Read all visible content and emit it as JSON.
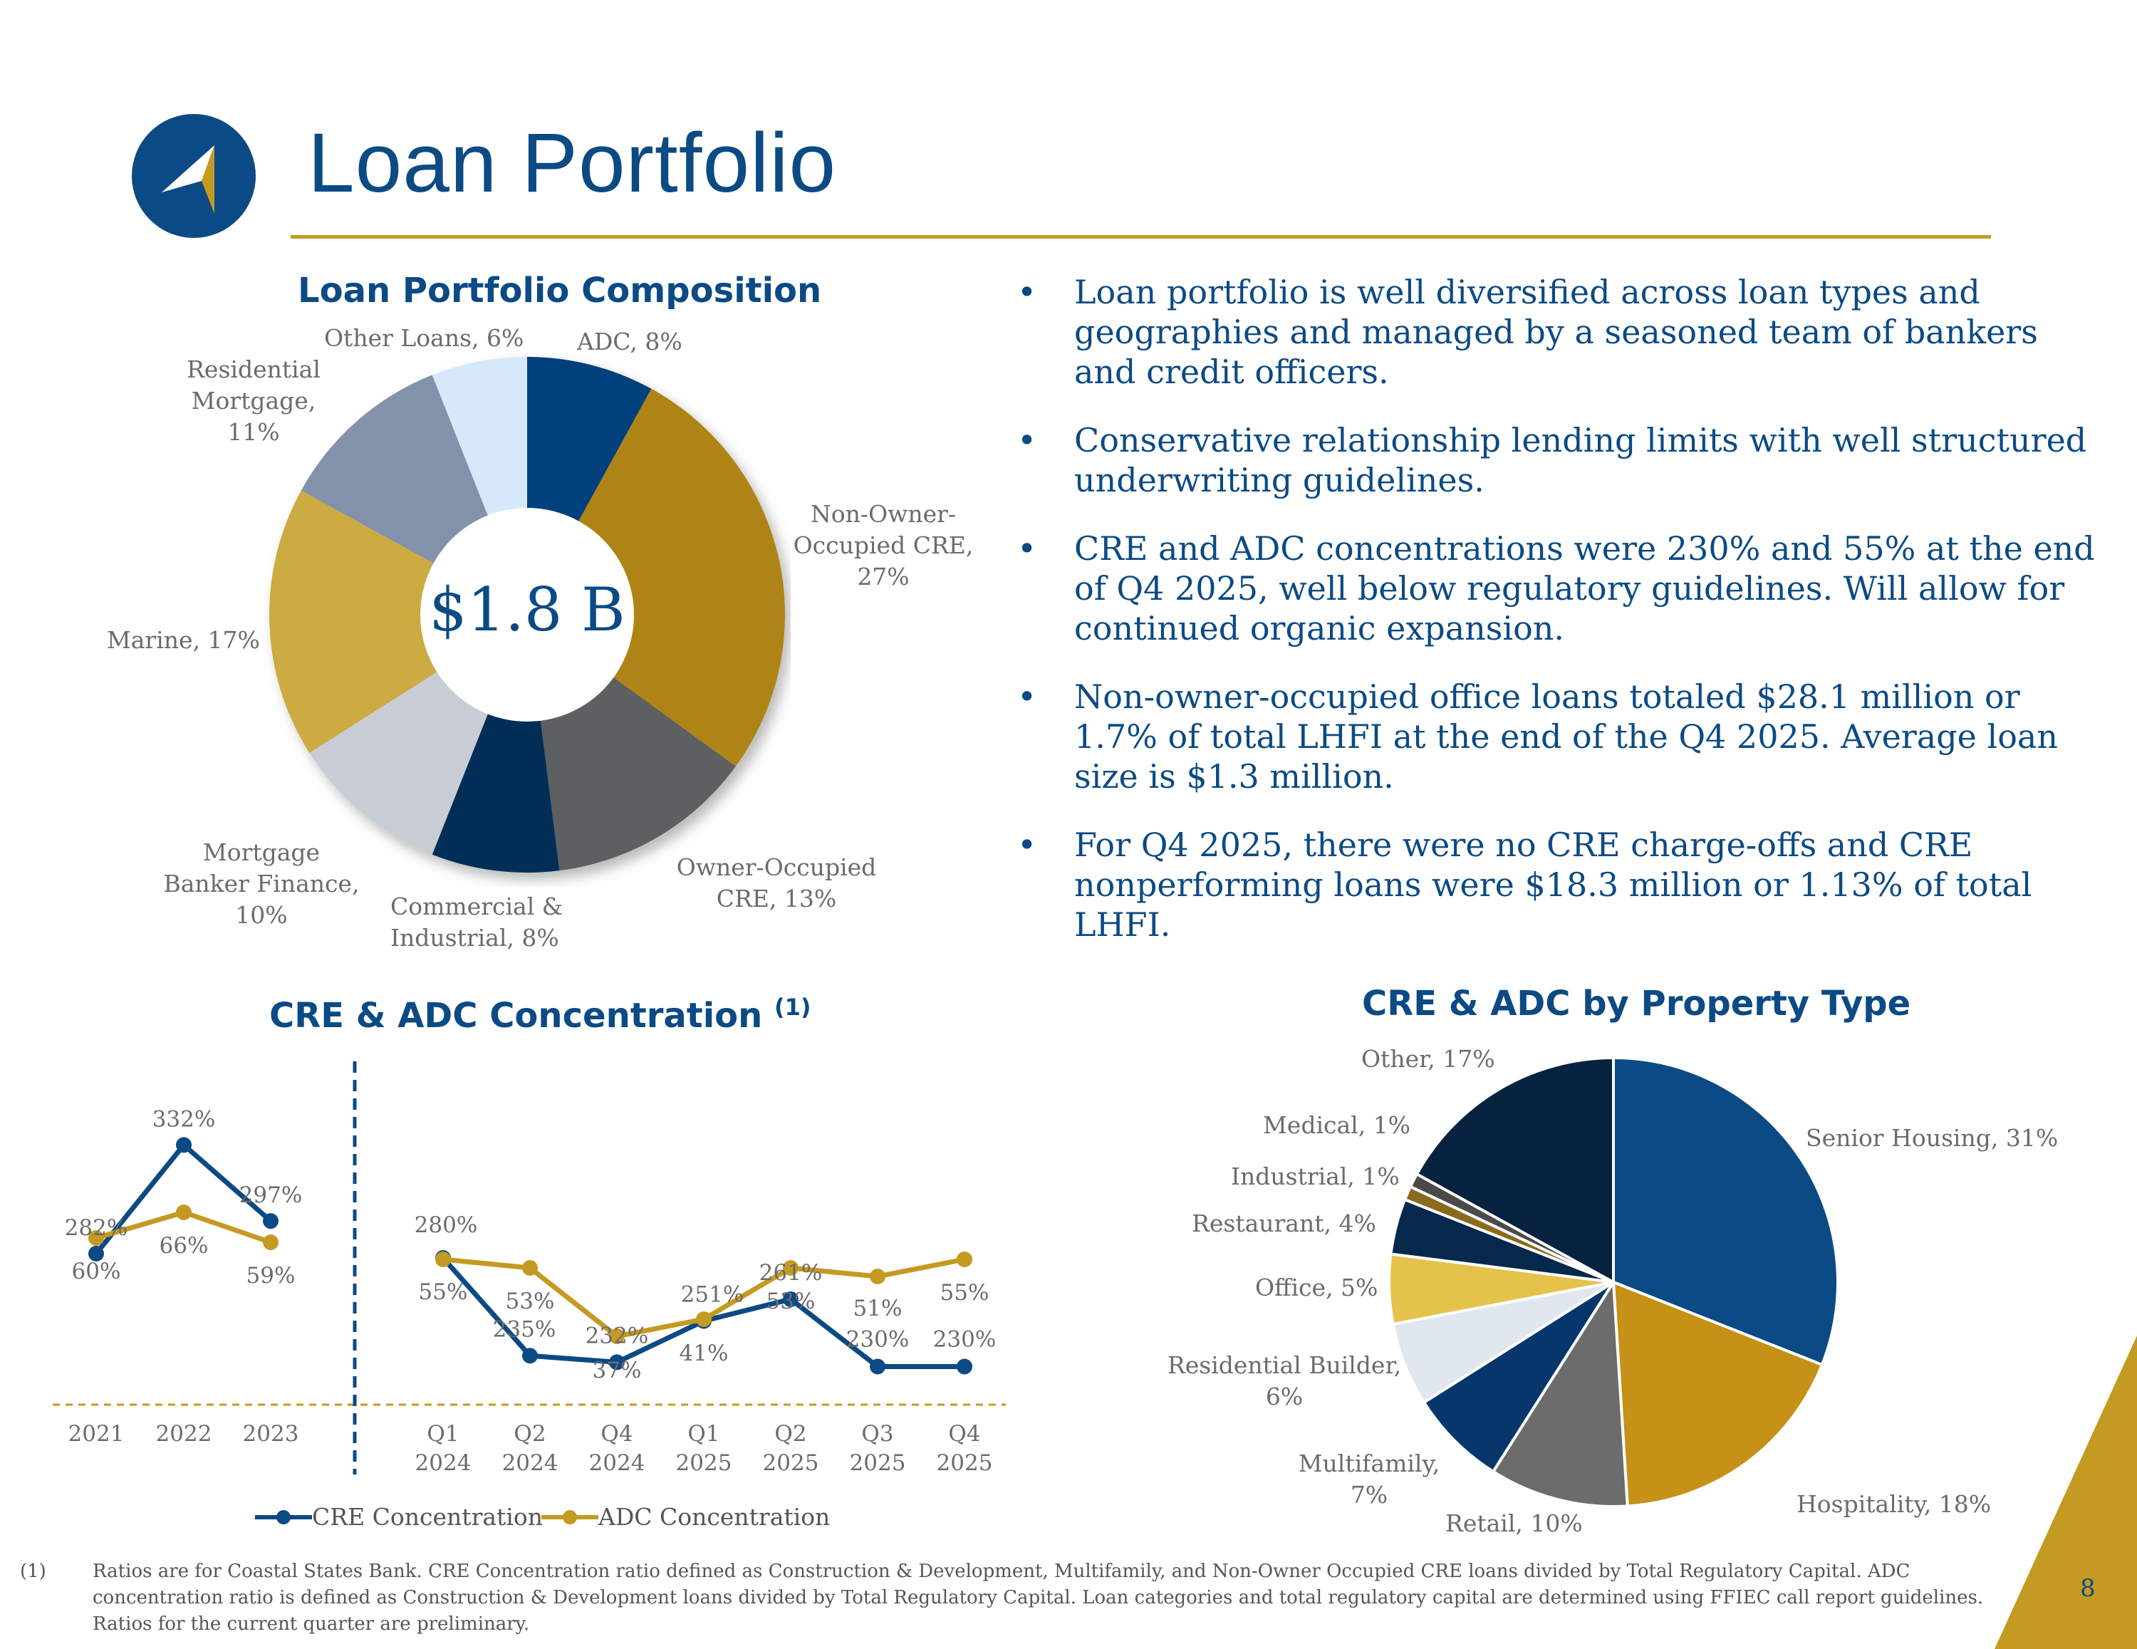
{
  "page": {
    "title": "Loan Portfolio",
    "page_number": "8"
  },
  "brand": {
    "navy": "#0b4a84",
    "gold": "#c59a22"
  },
  "composition": {
    "heading": "Loan Portfolio Composition",
    "center_total": "$1.8 B",
    "labels": {
      "other_loans": "Other Loans, 6%",
      "adc": "ADC, 8%",
      "residential": [
        "Residential",
        "Mortgage, 11%"
      ],
      "non_owner": [
        "Non-Owner-",
        "Occupied CRE,",
        "27%"
      ],
      "marine": "Marine, 17%",
      "mortgage_banker": [
        "Mortgage",
        "Banker Finance,",
        "10%"
      ],
      "commercial": [
        "Commercial &",
        "Industrial, 8%"
      ],
      "owner_occupied": [
        "Owner-Occupied",
        "CRE, 13%"
      ]
    }
  },
  "bullets": [
    "Loan portfolio is well diversified across loan types and geographies and managed by a seasoned team of bankers and credit officers.",
    "Conservative relationship lending limits with well structured underwriting guidelines.",
    "CRE and ADC concentrations were 230% and 55% at the end of Q4 2025, well below regulatory guidelines.  Will allow for continued organic expansion.",
    "Non-owner-occupied office loans totaled $28.1 million or 1.7% of total LHFI at the end of the Q4 2025.  Average loan size is $1.3 million.",
    "For Q4 2025, there were no CRE charge-offs and CRE nonperforming loans were $18.3 million or 1.13% of total LHFI."
  ],
  "bullet_char": "•",
  "concentration": {
    "heading": "CRE & ADC Concentration",
    "superscript": "(1)"
  },
  "property": {
    "heading": "CRE & ADC by Property Type",
    "labels": {
      "other": "Other, 17%",
      "medical": "Medical, 1%",
      "industrial": "Industrial, 1%",
      "restaurant": "Restaurant, 4%",
      "office": "Office, 5%",
      "residential_builder": [
        "Residential Builder,",
        "6%"
      ],
      "multifamily": [
        "Multifamily,",
        "7%"
      ],
      "retail": "Retail, 10%",
      "hospitality": "Hospitality, 18%",
      "senior_housing": "Senior Housing, 31%"
    }
  },
  "footnote": {
    "marker": "(1)",
    "lines": [
      "Ratios are for Coastal States Bank. CRE Concentration ratio defined as Construction & Development, Multifamily, and Non-Owner Occupied CRE loans divided by Total Regulatory Capital.  ADC",
      "concentration ratio is defined as Construction & Development loans divided by Total Regulatory Capital. Loan categories and total regulatory capital are determined using FFIEC call report guidelines.",
      "Ratios for the current quarter are preliminary."
    ]
  },
  "chart_data": [
    {
      "type": "pie",
      "title": "Loan Portfolio Composition",
      "center_label": "$1.8 B",
      "categories": [
        "ADC",
        "Non-Owner-Occupied CRE",
        "Owner-Occupied CRE",
        "Commercial & Industrial",
        "Mortgage Banker Finance",
        "Marine",
        "Residential Mortgage",
        "Other Loans"
      ],
      "values": [
        8,
        27,
        13,
        8,
        10,
        17,
        11,
        6
      ],
      "colors": [
        "#003f7d",
        "#ae8416",
        "#5d5e61",
        "#002d57",
        "#c8cdd5",
        "#cbab42",
        "#8392ab",
        "#d6e9fb"
      ]
    },
    {
      "type": "line",
      "title": "CRE & ADC Concentration",
      "legend_position": "bottom",
      "groups": [
        {
          "categories": [
            "2021",
            "2022",
            "2023"
          ]
        },
        {
          "categories": [
            "Q1\n2024",
            "Q2\n2024",
            "Q4\n2024",
            "Q1\n2025",
            "Q2\n2025",
            "Q3\n2025",
            "Q4\n2025"
          ]
        }
      ],
      "series": [
        {
          "name": "CRE Concentration",
          "color": "#0b4a84",
          "annual": [
            282,
            332,
            297
          ],
          "quarterly": [
            280,
            235,
            232,
            251,
            261,
            230,
            230
          ]
        },
        {
          "name": "ADC Concentration",
          "color": "#c59a22",
          "annual": [
            60,
            66,
            59
          ],
          "quarterly": [
            55,
            53,
            37,
            41,
            53,
            51,
            55
          ]
        }
      ],
      "value_suffix": "%"
    },
    {
      "type": "pie",
      "title": "CRE & ADC by Property Type",
      "categories": [
        "Senior Housing",
        "Hospitality",
        "Retail",
        "Multifamily",
        "Residential Builder",
        "Office",
        "Restaurant",
        "Industrial",
        "Medical",
        "Other"
      ],
      "values": [
        31,
        18,
        10,
        7,
        6,
        5,
        4,
        1,
        1,
        17
      ],
      "colors": [
        "#0b4a84",
        "#c59116",
        "#6c6c6c",
        "#06366b",
        "#e1e7ef",
        "#e5c34b",
        "#06284c",
        "#8a6a1e",
        "#4a4a4a",
        "#06223e"
      ]
    }
  ]
}
